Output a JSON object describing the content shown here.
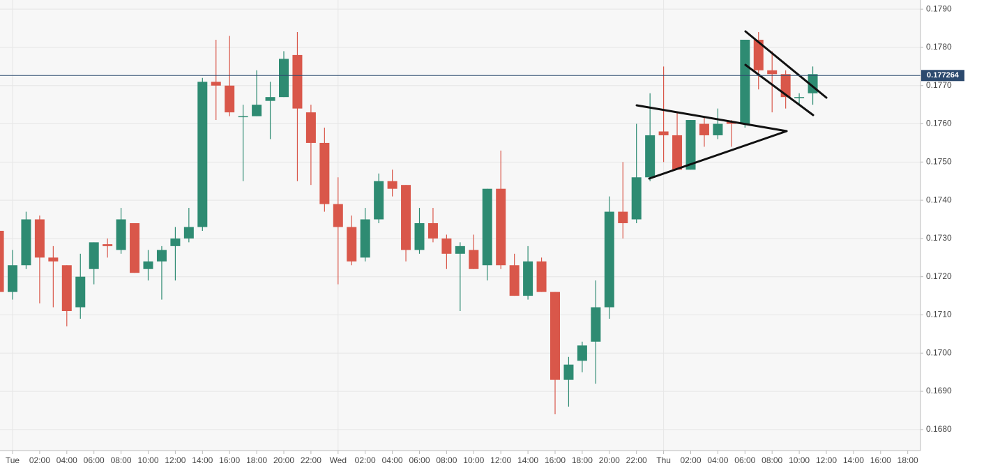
{
  "chart_data": {
    "type": "candlestick",
    "categories": [
      null,
      "Tue",
      null,
      "02:00",
      null,
      "04:00",
      null,
      "06:00",
      null,
      "08:00",
      null,
      "10:00",
      null,
      "12:00",
      null,
      "14:00",
      null,
      "16:00",
      null,
      "18:00",
      null,
      "20:00",
      null,
      "22:00",
      null,
      "Wed",
      null,
      "02:00",
      null,
      "04:00",
      null,
      "06:00",
      null,
      "08:00",
      null,
      "10:00",
      null,
      "12:00",
      null,
      "14:00",
      null,
      "16:00",
      null,
      "18:00",
      null,
      "20:00",
      null,
      "22:00",
      null,
      "Thu",
      null,
      "02:00",
      null,
      "04:00",
      null,
      "06:00",
      null,
      "08:00",
      null,
      "10:00",
      null,
      "12:00",
      null,
      "14:00",
      null,
      "16:00",
      null,
      "18:00"
    ],
    "open": [
      0.1732,
      0.1716,
      0.1723,
      0.1735,
      0.1725,
      0.1723,
      0.1712,
      0.1722,
      0.17285,
      0.1727,
      0.1734,
      0.1722,
      0.1724,
      0.1728,
      0.173,
      0.1733,
      0.1771,
      0.177,
      0.1762,
      0.1762,
      0.1766,
      0.1767,
      0.1778,
      0.1763,
      0.1755,
      0.1739,
      0.1733,
      0.1725,
      0.1735,
      0.1745,
      0.1744,
      0.1727,
      0.1734,
      0.173,
      0.1726,
      0.1727,
      0.1723,
      0.1743,
      0.1723,
      0.1715,
      0.1724,
      0.1716,
      0.1693,
      0.1698,
      0.1703,
      0.1712,
      0.1737,
      0.1735,
      0.1746,
      0.1758,
      0.1757,
      0.1748,
      0.176,
      0.1757,
      0.17605,
      0.176,
      0.1782,
      0.1774,
      0.1773,
      0.1767,
      0.1768,
      null,
      null,
      null,
      null,
      null,
      null,
      null
    ],
    "high": [
      0.1734,
      0.1727,
      0.1737,
      0.1736,
      0.1728,
      0.1723,
      0.1726,
      0.1729,
      0.173,
      0.1738,
      0.1734,
      0.1727,
      0.1728,
      0.1733,
      0.1738,
      0.1772,
      0.1782,
      0.1783,
      0.1765,
      0.1774,
      0.1771,
      0.1779,
      0.1784,
      0.1765,
      0.1759,
      0.1746,
      0.1736,
      0.1738,
      0.1747,
      0.1748,
      0.1744,
      0.1738,
      0.1738,
      0.1731,
      0.1729,
      0.1731,
      0.1743,
      0.1753,
      0.1726,
      0.1728,
      0.1725,
      0.1716,
      0.1699,
      0.1703,
      0.1719,
      0.1741,
      0.175,
      0.176,
      0.1768,
      0.1775,
      0.1763,
      0.1761,
      0.1762,
      0.1764,
      0.1761,
      0.1782,
      0.1784,
      0.1779,
      0.1774,
      0.1768,
      0.1775,
      null,
      null,
      null,
      null,
      null,
      null,
      null
    ],
    "low": [
      0.1716,
      0.1714,
      0.1722,
      0.1713,
      0.1712,
      0.1707,
      0.1709,
      0.1718,
      0.1725,
      0.1726,
      0.1721,
      0.1719,
      0.1714,
      0.1719,
      0.1729,
      0.1732,
      0.1761,
      0.1762,
      0.1745,
      0.1762,
      0.1756,
      0.1767,
      0.1745,
      0.1744,
      0.1737,
      0.1718,
      0.1723,
      0.1724,
      0.1734,
      0.1741,
      0.1724,
      0.1726,
      0.1729,
      0.1722,
      0.1711,
      0.1722,
      0.1719,
      0.1722,
      0.1715,
      0.1714,
      0.1716,
      0.1684,
      0.1686,
      0.1695,
      0.1692,
      0.1709,
      0.173,
      0.1734,
      0.1745,
      0.175,
      0.1748,
      0.1748,
      0.1754,
      0.1756,
      0.1754,
      0.1759,
      0.1769,
      0.1763,
      0.1764,
      0.1765,
      0.1765,
      null,
      null,
      null,
      null,
      null,
      null,
      null
    ],
    "close": [
      0.1716,
      0.1723,
      0.1735,
      0.1725,
      0.1724,
      0.1711,
      0.172,
      0.1729,
      0.1728,
      0.1735,
      0.1721,
      0.1724,
      0.1727,
      0.173,
      0.1733,
      0.1771,
      0.177,
      0.1763,
      0.1762,
      0.1765,
      0.1767,
      0.1777,
      0.1764,
      0.1755,
      0.1739,
      0.1733,
      0.1724,
      0.1735,
      0.1745,
      0.1743,
      0.1727,
      0.1734,
      0.173,
      0.1726,
      0.1728,
      0.1722,
      0.1743,
      0.1723,
      0.1715,
      0.1724,
      0.1716,
      0.1693,
      0.1697,
      0.1702,
      0.1712,
      0.1737,
      0.1734,
      0.1746,
      0.1757,
      0.1757,
      0.1748,
      0.1761,
      0.1757,
      0.176,
      0.176,
      0.1782,
      0.1774,
      0.1773,
      0.1767,
      0.1767,
      0.1773,
      null,
      null,
      null,
      null,
      null,
      null,
      null
    ],
    "up_color": "#2e8b72",
    "down_color": "#d9574a",
    "ylim": [
      0.16745,
      0.17924
    ],
    "yticks": [
      {
        "value": 0.168,
        "label": "0.1680"
      },
      {
        "value": 0.169,
        "label": "0.1690"
      },
      {
        "value": 0.17,
        "label": "0.1700"
      },
      {
        "value": 0.171,
        "label": "0.1710"
      },
      {
        "value": 0.172,
        "label": "0.1720"
      },
      {
        "value": 0.173,
        "label": "0.1730"
      },
      {
        "value": 0.174,
        "label": "0.1740"
      },
      {
        "value": 0.175,
        "label": "0.1750"
      },
      {
        "value": 0.176,
        "label": "0.1760"
      },
      {
        "value": 0.177,
        "label": "0.1770"
      },
      {
        "value": 0.178,
        "label": "0.1780"
      },
      {
        "value": 0.179,
        "label": "0.1790"
      }
    ],
    "last_price": 0.177264,
    "grid": true
  }
}
